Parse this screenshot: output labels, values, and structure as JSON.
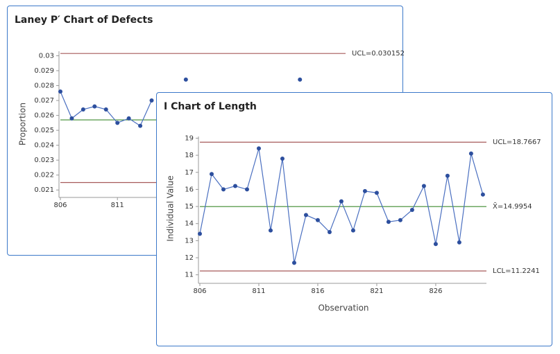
{
  "chart_data": [
    {
      "type": "line",
      "title": "Laney P′ Chart of Defects",
      "y_label": "Proportion",
      "x": [
        806,
        807,
        808,
        809,
        810,
        811,
        812,
        813,
        814,
        815,
        816,
        817,
        818,
        819,
        820,
        821,
        822,
        823,
        824,
        825,
        826,
        827
      ],
      "series": [
        {
          "color": "#4a6fc0",
          "values": [
            0.0276,
            0.0258,
            0.0264,
            0.0266,
            0.0264,
            0.0255,
            0.0258,
            0.0253,
            0.027,
            null,
            null,
            0.0284,
            null,
            null,
            null,
            null,
            null,
            null,
            null,
            null,
            null,
            0.0284
          ]
        }
      ],
      "limits": [
        {
          "value": 0.030152,
          "label": "UCL=0.030152",
          "color": "#a65858"
        },
        {
          "value": 0.0257,
          "color": "#3c8a2e"
        },
        {
          "value": 0.0215,
          "color": "#a65858"
        }
      ],
      "xlim": [
        806,
        831
      ],
      "ylim": [
        0.0205,
        0.0303
      ],
      "xticks": [
        806,
        811
      ],
      "yticks": [
        0.021,
        0.022,
        0.023,
        0.024,
        0.025,
        0.026,
        0.027,
        0.028,
        0.029,
        0.03
      ]
    },
    {
      "type": "line",
      "title": "I Chart of Length",
      "y_label": "Individual Value",
      "x_label": "Observation",
      "x": [
        806,
        807,
        808,
        809,
        810,
        811,
        812,
        813,
        814,
        815,
        816,
        817,
        818,
        819,
        820,
        821,
        822,
        823,
        824,
        825,
        826,
        827,
        828,
        829,
        830
      ],
      "series": [
        {
          "color": "#4a6fc0",
          "values": [
            13.4,
            16.9,
            16.0,
            16.2,
            16.0,
            18.4,
            13.6,
            17.8,
            11.7,
            14.5,
            14.2,
            13.5,
            15.3,
            13.6,
            15.9,
            15.8,
            14.1,
            14.2,
            14.8,
            16.2,
            12.8,
            16.8,
            12.9,
            18.1,
            15.7
          ]
        }
      ],
      "limits": [
        {
          "value": 18.7667,
          "label": "UCL=18.7667",
          "color": "#a65858"
        },
        {
          "value": 14.9954,
          "label": "X̄=14.9954",
          "color": "#3c8a2e"
        },
        {
          "value": 11.2241,
          "label": "LCL=11.2241",
          "color": "#a65858"
        }
      ],
      "xlim": [
        806,
        830.3
      ],
      "ylim": [
        10.5,
        19.1
      ],
      "xticks": [
        806,
        811,
        816,
        821,
        826
      ],
      "yticks": [
        11,
        12,
        13,
        14,
        15,
        16,
        17,
        18,
        19
      ]
    }
  ]
}
